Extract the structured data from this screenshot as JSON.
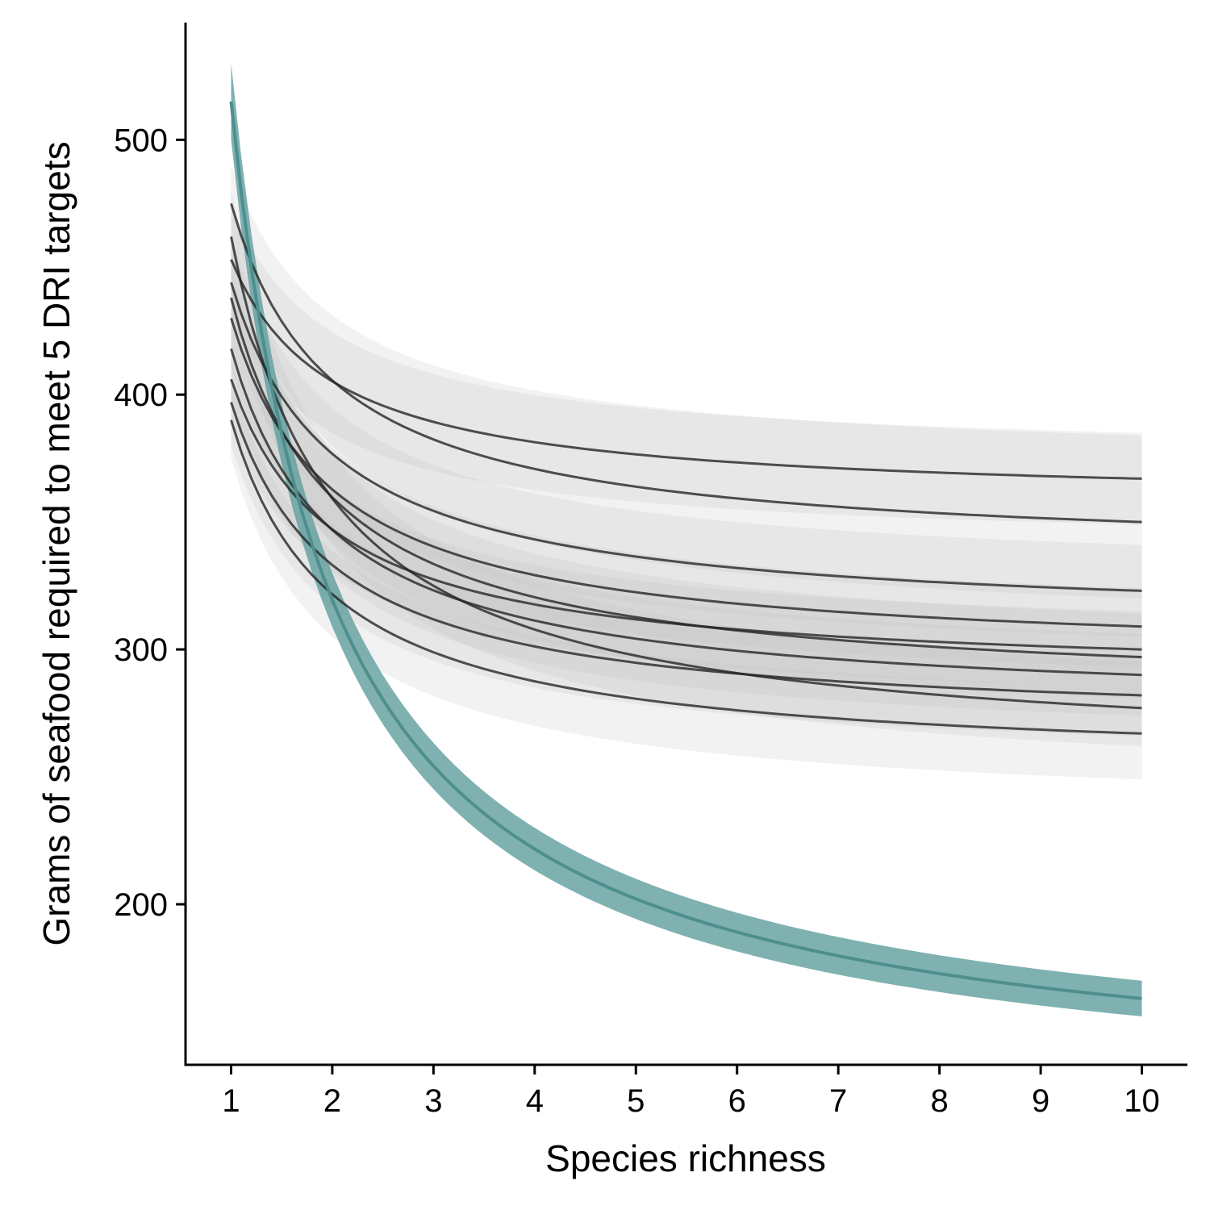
{
  "chart_data": {
    "type": "line",
    "title": "",
    "xlabel": "Species richness",
    "ylabel": "Grams of seafood required to meet 5 DRI targets",
    "xlim": [
      0.55,
      10.45
    ],
    "ylim": [
      137,
      546
    ],
    "x_ticks": [
      1,
      2,
      3,
      4,
      5,
      6,
      7,
      8,
      9,
      10
    ],
    "y_ticks": [
      200,
      300,
      400,
      500
    ],
    "grid": false,
    "legend": "none",
    "colors": {
      "highlight_band": "#5f9e9d",
      "highlight_line": "#4e8f8e",
      "gray_band": "#bdbdbd",
      "gray_line": "#262626"
    },
    "x": [
      1,
      2,
      3,
      4,
      5,
      6,
      7,
      8,
      9,
      10
    ],
    "series": [
      {
        "start": 475,
        "end": 350,
        "band_lo_start": 455,
        "band_lo_end": 320,
        "band_hi_start": 490,
        "band_hi_end": 384,
        "highlight": false
      },
      {
        "start": 462,
        "end": 277,
        "band_lo_start": 440,
        "band_lo_end": 262,
        "band_hi_start": 480,
        "band_hi_end": 295,
        "highlight": false
      },
      {
        "start": 453,
        "end": 367,
        "band_lo_start": 430,
        "band_lo_end": 349,
        "band_hi_start": 474,
        "band_hi_end": 385,
        "highlight": false
      },
      {
        "start": 444,
        "end": 323,
        "band_lo_start": 424,
        "band_lo_end": 305,
        "band_hi_start": 462,
        "band_hi_end": 341,
        "highlight": false
      },
      {
        "start": 438,
        "end": 297,
        "band_lo_start": 418,
        "band_lo_end": 281,
        "band_hi_start": 456,
        "band_hi_end": 314,
        "highlight": false
      },
      {
        "start": 430,
        "end": 309,
        "band_lo_start": 410,
        "band_lo_end": 293,
        "band_hi_start": 448,
        "band_hi_end": 324,
        "highlight": false
      },
      {
        "start": 418,
        "end": 290,
        "band_lo_start": 398,
        "band_lo_end": 274,
        "band_hi_start": 436,
        "band_hi_end": 306,
        "highlight": false
      },
      {
        "start": 406,
        "end": 300,
        "band_lo_start": 388,
        "band_lo_end": 285,
        "band_hi_start": 424,
        "band_hi_end": 315,
        "highlight": false
      },
      {
        "start": 397,
        "end": 282,
        "band_lo_start": 380,
        "band_lo_end": 266,
        "band_hi_start": 414,
        "band_hi_end": 298,
        "highlight": false
      },
      {
        "start": 390,
        "end": 267,
        "band_lo_start": 375,
        "band_lo_end": 249,
        "band_hi_start": 406,
        "band_hi_end": 285,
        "highlight": false
      },
      {
        "start": 515,
        "end": 163,
        "band_lo_start": 500,
        "band_lo_end": 156,
        "band_hi_start": 530,
        "band_hi_end": 170,
        "highlight": true
      }
    ]
  }
}
